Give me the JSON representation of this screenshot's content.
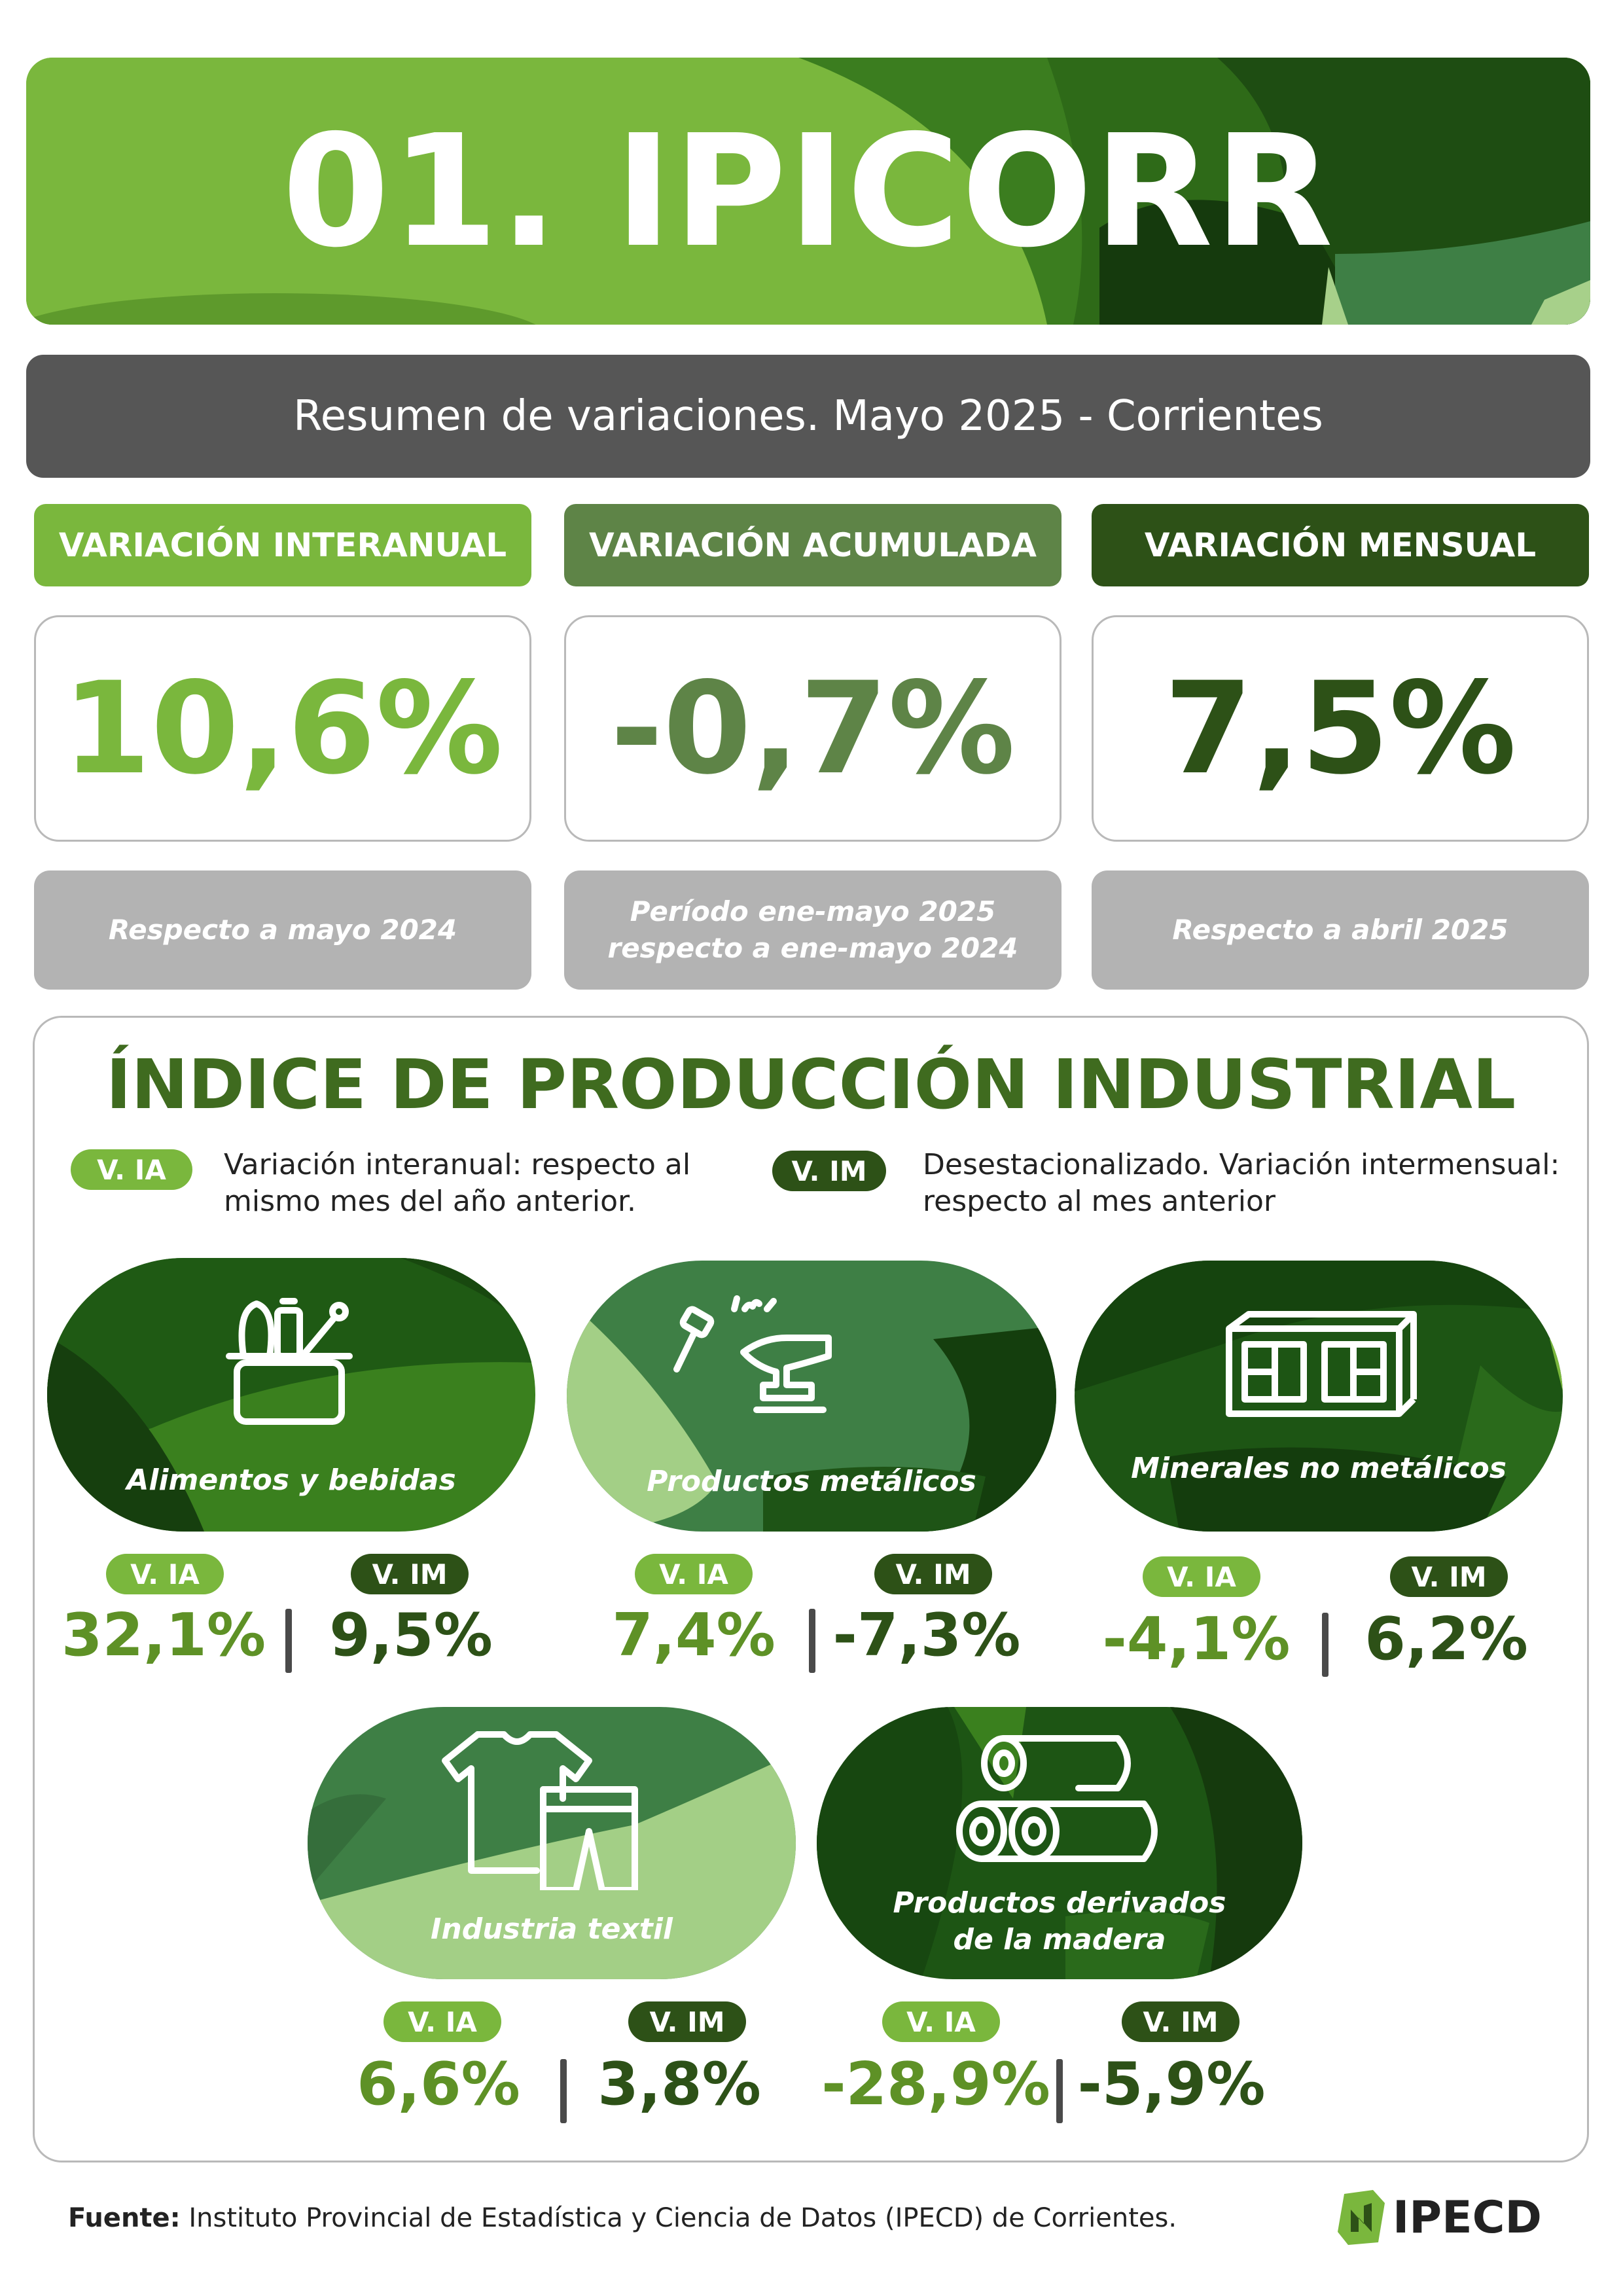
{
  "header": {
    "title": "01. IPICORR",
    "subtitle": "Resumen de variaciones. Mayo 2025 - Corrientes"
  },
  "colors": {
    "light_green": "#7ab73d",
    "mid_green": "#5e8447",
    "dark_green": "#2d5117",
    "gray_bar": "#565656",
    "gray_note": "#b3b3b3"
  },
  "variations": [
    {
      "heading": "VARIACIÓN INTERANUAL",
      "value": "10,6%",
      "note": "Respecto a mayo 2024"
    },
    {
      "heading": "VARIACIÓN ACUMULADA",
      "value": "-0,7%",
      "note": "Período ene-mayo 2025\nrespecto a ene-mayo 2024"
    },
    {
      "heading": "VARIACIÓN MENSUAL",
      "value": "7,5%",
      "note": "Respecto a abril 2025"
    }
  ],
  "index": {
    "title": "ÍNDICE DE PRODUCCIÓN INDUSTRIAL",
    "legend": {
      "ia_tag": "V. IA",
      "ia_text": "Variación interanual: respecto al\nmismo mes del año anterior.",
      "im_tag": "V. IM",
      "im_text": "Desestacionalizado. Variación intermensual:\nrespecto al mes anterior"
    },
    "sectors": [
      {
        "name": "Alimentos y bebidas",
        "icon": "food-basket-icon",
        "ia_tag": "V. IA",
        "im_tag": "V. IM",
        "ia": "32,1%",
        "im": "9,5%"
      },
      {
        "name": "Productos metálicos",
        "icon": "anvil-hammer-icon",
        "ia_tag": "V. IA",
        "im_tag": "V. IM",
        "ia": "7,4%",
        "im": "-7,3%"
      },
      {
        "name": "Minerales no metálicos",
        "icon": "brick-icon",
        "ia_tag": "V. IA",
        "im_tag": "V. IM",
        "ia": "-4,1%",
        "im": "6,2%"
      },
      {
        "name": "Industria textil",
        "icon": "clothing-icon",
        "ia_tag": "V. IA",
        "im_tag": "V. IM",
        "ia": "6,6%",
        "im": "3,8%"
      },
      {
        "name": "Productos derivados\nde la madera",
        "icon": "logs-icon",
        "ia_tag": "V. IA",
        "im_tag": "V. IM",
        "ia": "-28,9%",
        "im": "-5,9%"
      }
    ]
  },
  "footer": {
    "source_label": "Fuente:",
    "source_text": " Instituto Provincial de Estadística y Ciencia de Datos (IPECD) de Corrientes.",
    "logo_text": "IPECD"
  }
}
